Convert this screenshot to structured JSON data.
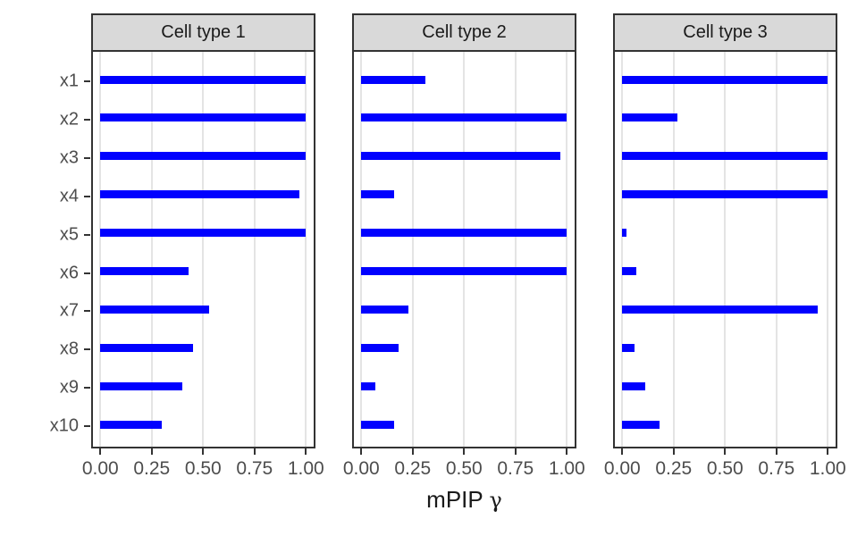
{
  "chart_data": {
    "type": "bar",
    "orientation": "horizontal",
    "xlabel": "mPIP γ",
    "xlabel_main": "mPIP",
    "xlabel_symbol": "γ",
    "categories": [
      "x1",
      "x2",
      "x3",
      "x4",
      "x5",
      "x6",
      "x7",
      "x8",
      "x9",
      "x10"
    ],
    "x_tick_labels": [
      "0.00",
      "0.25",
      "0.50",
      "0.75",
      "1.00"
    ],
    "x_tick_values": [
      0,
      0.25,
      0.5,
      0.75,
      1.0
    ],
    "xlim": [
      0,
      1
    ],
    "grid": "major-vertical-only",
    "facets": [
      {
        "label": "Cell type 1",
        "values": [
          1.0,
          1.0,
          1.0,
          0.97,
          1.0,
          0.43,
          0.53,
          0.45,
          0.4,
          0.3
        ]
      },
      {
        "label": "Cell type 2",
        "values": [
          0.31,
          1.0,
          0.97,
          0.16,
          1.0,
          1.0,
          0.23,
          0.18,
          0.07,
          0.16
        ]
      },
      {
        "label": "Cell type 3",
        "values": [
          1.0,
          0.27,
          1.0,
          1.0,
          0.02,
          0.07,
          0.95,
          0.06,
          0.11,
          0.18
        ]
      }
    ],
    "colors": {
      "bar": "#0101FF",
      "strip_background": "#D9D9D9",
      "panel_border": "#333333",
      "gridline": "#E4E4E4",
      "tick_mark": "#333333",
      "axis_text": "#4d4d4d",
      "title_text": "#1a1a1a"
    }
  }
}
